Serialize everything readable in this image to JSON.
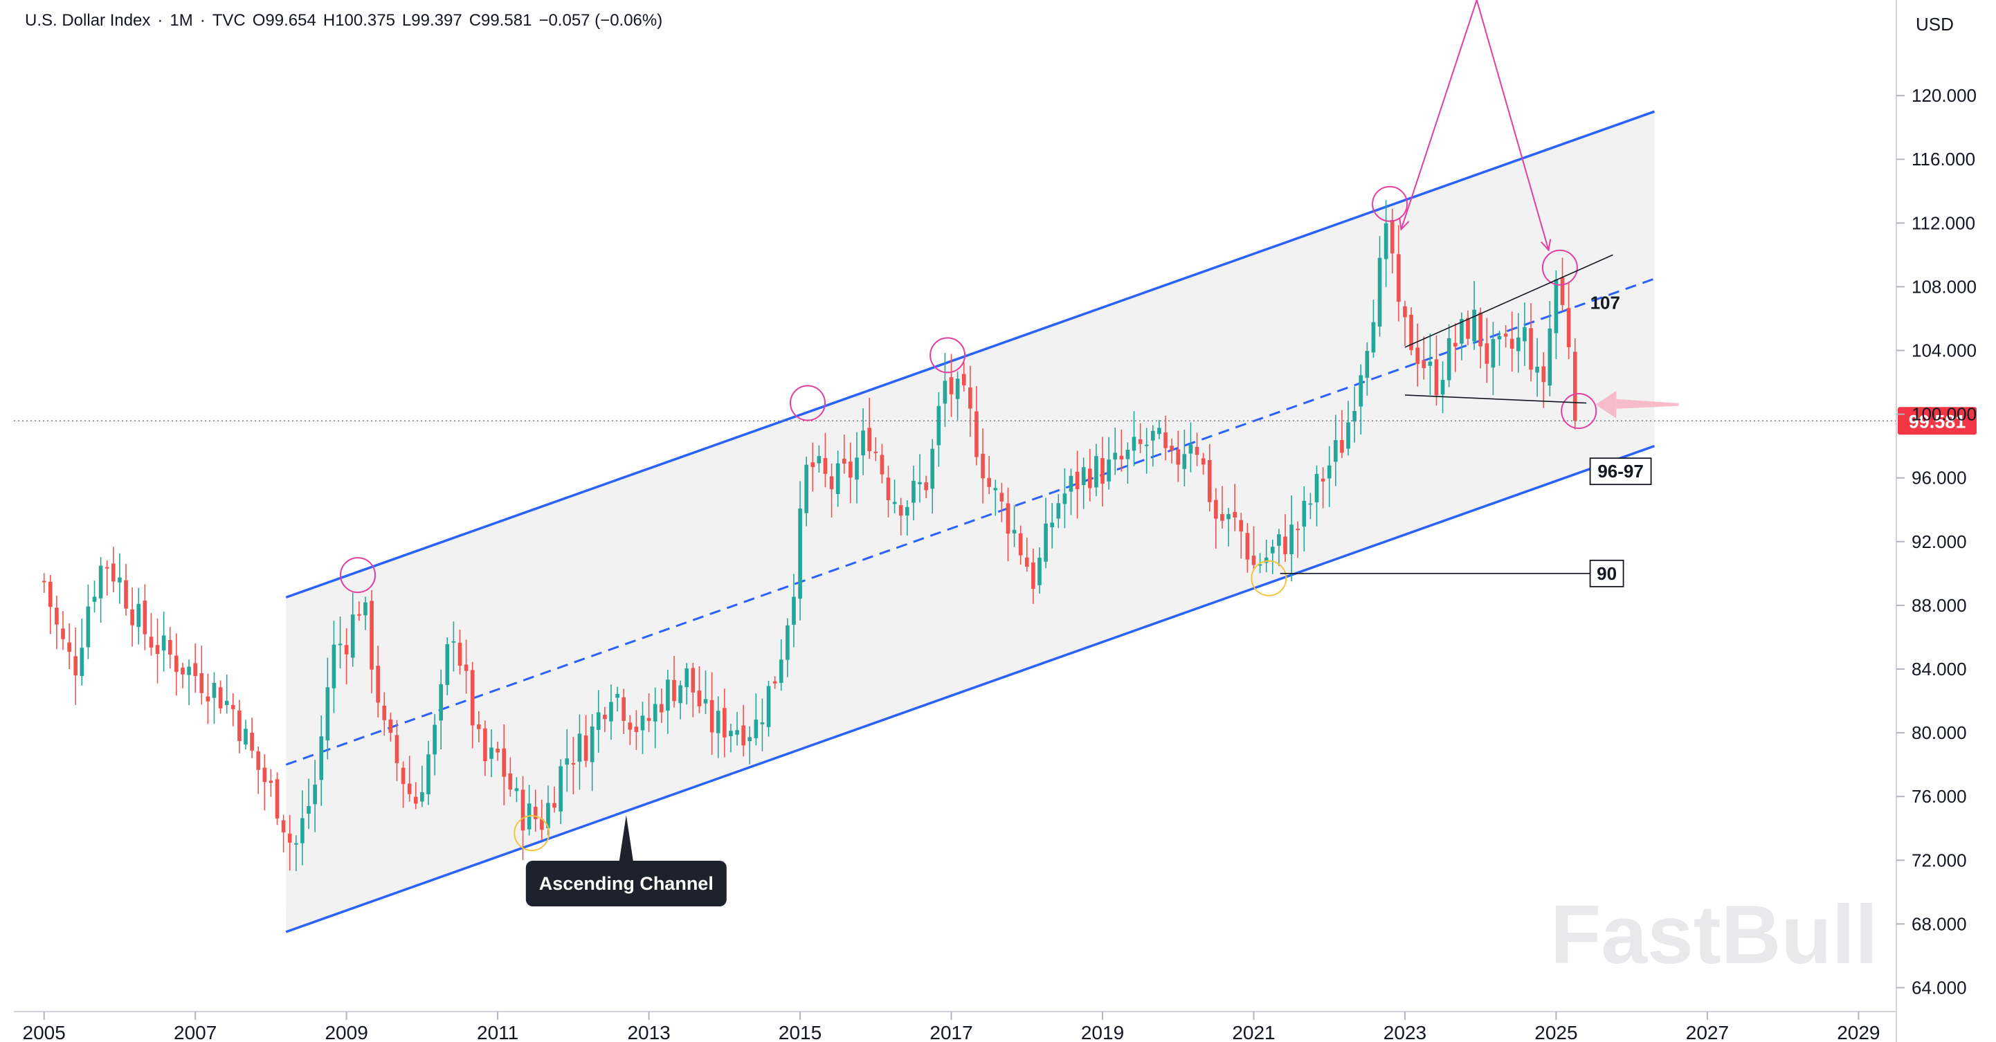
{
  "header": {
    "title": "U.S. Dollar Index",
    "interval": "1M",
    "source": "TVC",
    "open": "O99.654",
    "high": "H100.375",
    "low": "L99.397",
    "close": "C99.581",
    "change": "−0.057 (−0.06%)",
    "sep": "·"
  },
  "currency_label": "USD",
  "last_price_label": "99.581",
  "watermark": "FastBull",
  "colors": {
    "up": "#26a69a",
    "down": "#ef5350",
    "channel": "#2962ff",
    "accent": "#f23645",
    "highlight": "#e040a0"
  },
  "chart_data": {
    "type": "candlestick",
    "title": "U.S. Dollar Index",
    "x_range": [
      2004.6,
      2029.5
    ],
    "ylim": [
      62.5,
      126.0
    ],
    "x_ticks": [
      "2005",
      "2007",
      "2009",
      "2011",
      "2013",
      "2015",
      "2017",
      "2019",
      "2021",
      "2023",
      "2025",
      "2027",
      "2029"
    ],
    "y_ticks": [
      "64.000",
      "68.000",
      "72.000",
      "76.000",
      "80.000",
      "84.000",
      "88.000",
      "92.000",
      "96.000",
      "100.000",
      "104.000",
      "108.000",
      "112.000",
      "116.000",
      "120.000"
    ],
    "last_price": 99.581,
    "closes": [
      {
        "t": 2005.0,
        "v": 89.5
      },
      {
        "t": 2005.2,
        "v": 86.0
      },
      {
        "t": 2005.4,
        "v": 84.0
      },
      {
        "t": 2005.6,
        "v": 88.5
      },
      {
        "t": 2005.8,
        "v": 91.0
      },
      {
        "t": 2006.0,
        "v": 89.5
      },
      {
        "t": 2006.3,
        "v": 86.5
      },
      {
        "t": 2006.6,
        "v": 85.0
      },
      {
        "t": 2006.9,
        "v": 84.0
      },
      {
        "t": 2007.2,
        "v": 83.0
      },
      {
        "t": 2007.5,
        "v": 81.5
      },
      {
        "t": 2007.8,
        "v": 78.0
      },
      {
        "t": 2008.1,
        "v": 75.5
      },
      {
        "t": 2008.3,
        "v": 72.5
      },
      {
        "t": 2008.6,
        "v": 77.0
      },
      {
        "t": 2008.8,
        "v": 85.0
      },
      {
        "t": 2009.0,
        "v": 86.0
      },
      {
        "t": 2009.2,
        "v": 88.5
      },
      {
        "t": 2009.5,
        "v": 80.0
      },
      {
        "t": 2009.9,
        "v": 75.5
      },
      {
        "t": 2010.2,
        "v": 80.5
      },
      {
        "t": 2010.4,
        "v": 87.0
      },
      {
        "t": 2010.8,
        "v": 78.0
      },
      {
        "t": 2011.0,
        "v": 78.5
      },
      {
        "t": 2011.3,
        "v": 75.0
      },
      {
        "t": 2011.6,
        "v": 74.5
      },
      {
        "t": 2011.9,
        "v": 78.5
      },
      {
        "t": 2012.2,
        "v": 79.5
      },
      {
        "t": 2012.5,
        "v": 83.0
      },
      {
        "t": 2012.9,
        "v": 80.0
      },
      {
        "t": 2013.2,
        "v": 82.5
      },
      {
        "t": 2013.5,
        "v": 83.5
      },
      {
        "t": 2013.8,
        "v": 80.5
      },
      {
        "t": 2014.1,
        "v": 80.5
      },
      {
        "t": 2014.4,
        "v": 80.3
      },
      {
        "t": 2014.7,
        "v": 84.0
      },
      {
        "t": 2014.9,
        "v": 89.0
      },
      {
        "t": 2015.1,
        "v": 97.0
      },
      {
        "t": 2015.4,
        "v": 95.5
      },
      {
        "t": 2015.7,
        "v": 96.5
      },
      {
        "t": 2015.9,
        "v": 99.0
      },
      {
        "t": 2016.2,
        "v": 95.0
      },
      {
        "t": 2016.4,
        "v": 94.5
      },
      {
        "t": 2016.7,
        "v": 96.0
      },
      {
        "t": 2016.9,
        "v": 102.0
      },
      {
        "t": 2017.2,
        "v": 100.5
      },
      {
        "t": 2017.5,
        "v": 95.5
      },
      {
        "t": 2017.8,
        "v": 93.0
      },
      {
        "t": 2018.1,
        "v": 89.5
      },
      {
        "t": 2018.4,
        "v": 94.5
      },
      {
        "t": 2018.8,
        "v": 96.5
      },
      {
        "t": 2019.1,
        "v": 96.5
      },
      {
        "t": 2019.4,
        "v": 97.5
      },
      {
        "t": 2019.7,
        "v": 98.5
      },
      {
        "t": 2019.9,
        "v": 96.5
      },
      {
        "t": 2020.2,
        "v": 99.0
      },
      {
        "t": 2020.5,
        "v": 93.5
      },
      {
        "t": 2020.8,
        "v": 93.0
      },
      {
        "t": 2021.0,
        "v": 90.5
      },
      {
        "t": 2021.3,
        "v": 91.5
      },
      {
        "t": 2021.6,
        "v": 93.0
      },
      {
        "t": 2021.9,
        "v": 96.0
      },
      {
        "t": 2022.2,
        "v": 98.5
      },
      {
        "t": 2022.5,
        "v": 105.0
      },
      {
        "t": 2022.8,
        "v": 112.0
      },
      {
        "t": 2022.9,
        "v": 106.0
      },
      {
        "t": 2023.1,
        "v": 104.5
      },
      {
        "t": 2023.4,
        "v": 102.0
      },
      {
        "t": 2023.6,
        "v": 104.0
      },
      {
        "t": 2023.9,
        "v": 106.0
      },
      {
        "t": 2024.1,
        "v": 103.5
      },
      {
        "t": 2024.4,
        "v": 104.0
      },
      {
        "t": 2024.6,
        "v": 105.0
      },
      {
        "t": 2024.8,
        "v": 101.0
      },
      {
        "t": 2025.0,
        "v": 108.5
      },
      {
        "t": 2025.2,
        "v": 104.0
      },
      {
        "t": 2025.3,
        "v": 99.58
      }
    ],
    "channel": {
      "lower": [
        [
          2008.2,
          67.5
        ],
        [
          2026.3,
          98.0
        ]
      ],
      "upper": [
        [
          2008.2,
          88.5
        ],
        [
          2026.3,
          119.0
        ]
      ],
      "mid": [
        [
          2008.2,
          78.0
        ],
        [
          2026.3,
          108.5
        ]
      ]
    },
    "levels": [
      {
        "label": "107",
        "value": 107
      },
      {
        "label": "96-97",
        "value": 96.5
      },
      {
        "label": "90",
        "value": 90
      }
    ],
    "annotations": [
      {
        "text": "Ascending Channel"
      }
    ]
  }
}
